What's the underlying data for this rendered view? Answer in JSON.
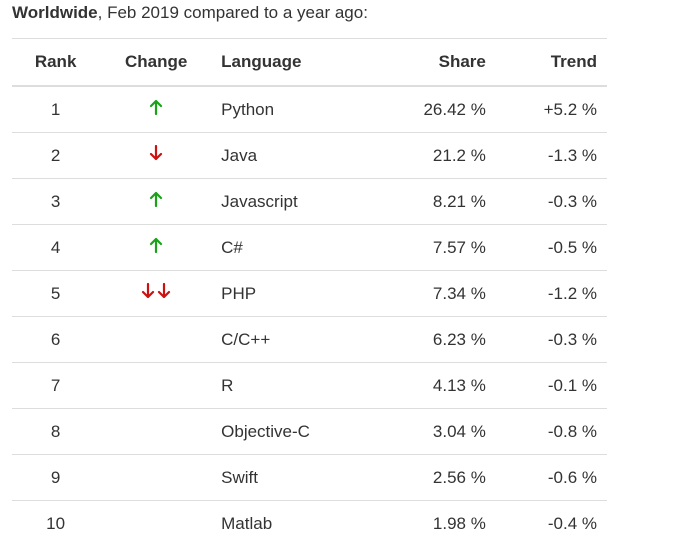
{
  "caption": {
    "bold": "Worldwide",
    "rest": ", Feb 2019 compared to a year ago:"
  },
  "headers": {
    "rank": "Rank",
    "change": "Change",
    "language": "Language",
    "share": "Share",
    "trend": "Trend"
  },
  "colors": {
    "up": "#1aa31a",
    "down": "#cc1111",
    "border": "#dddddd",
    "text": "#333333"
  },
  "rows": [
    {
      "rank": "1",
      "change": "up",
      "language": "Python",
      "share": "26.42 %",
      "trend": "+5.2 %"
    },
    {
      "rank": "2",
      "change": "down",
      "language": "Java",
      "share": "21.2 %",
      "trend": "-1.3 %"
    },
    {
      "rank": "3",
      "change": "up",
      "language": "Javascript",
      "share": "8.21 %",
      "trend": "-0.3 %"
    },
    {
      "rank": "4",
      "change": "up",
      "language": "C#",
      "share": "7.57 %",
      "trend": "-0.5 %"
    },
    {
      "rank": "5",
      "change": "double-down",
      "language": "PHP",
      "share": "7.34 %",
      "trend": "-1.2 %"
    },
    {
      "rank": "6",
      "change": "none",
      "language": "C/C++",
      "share": "6.23 %",
      "trend": "-0.3 %"
    },
    {
      "rank": "7",
      "change": "none",
      "language": "R",
      "share": "4.13 %",
      "trend": "-0.1 %"
    },
    {
      "rank": "8",
      "change": "none",
      "language": "Objective-C",
      "share": "3.04 %",
      "trend": "-0.8 %"
    },
    {
      "rank": "9",
      "change": "none",
      "language": "Swift",
      "share": "2.56 %",
      "trend": "-0.6 %"
    },
    {
      "rank": "10",
      "change": "none",
      "language": "Matlab",
      "share": "1.98 %",
      "trend": "-0.4 %"
    }
  ]
}
